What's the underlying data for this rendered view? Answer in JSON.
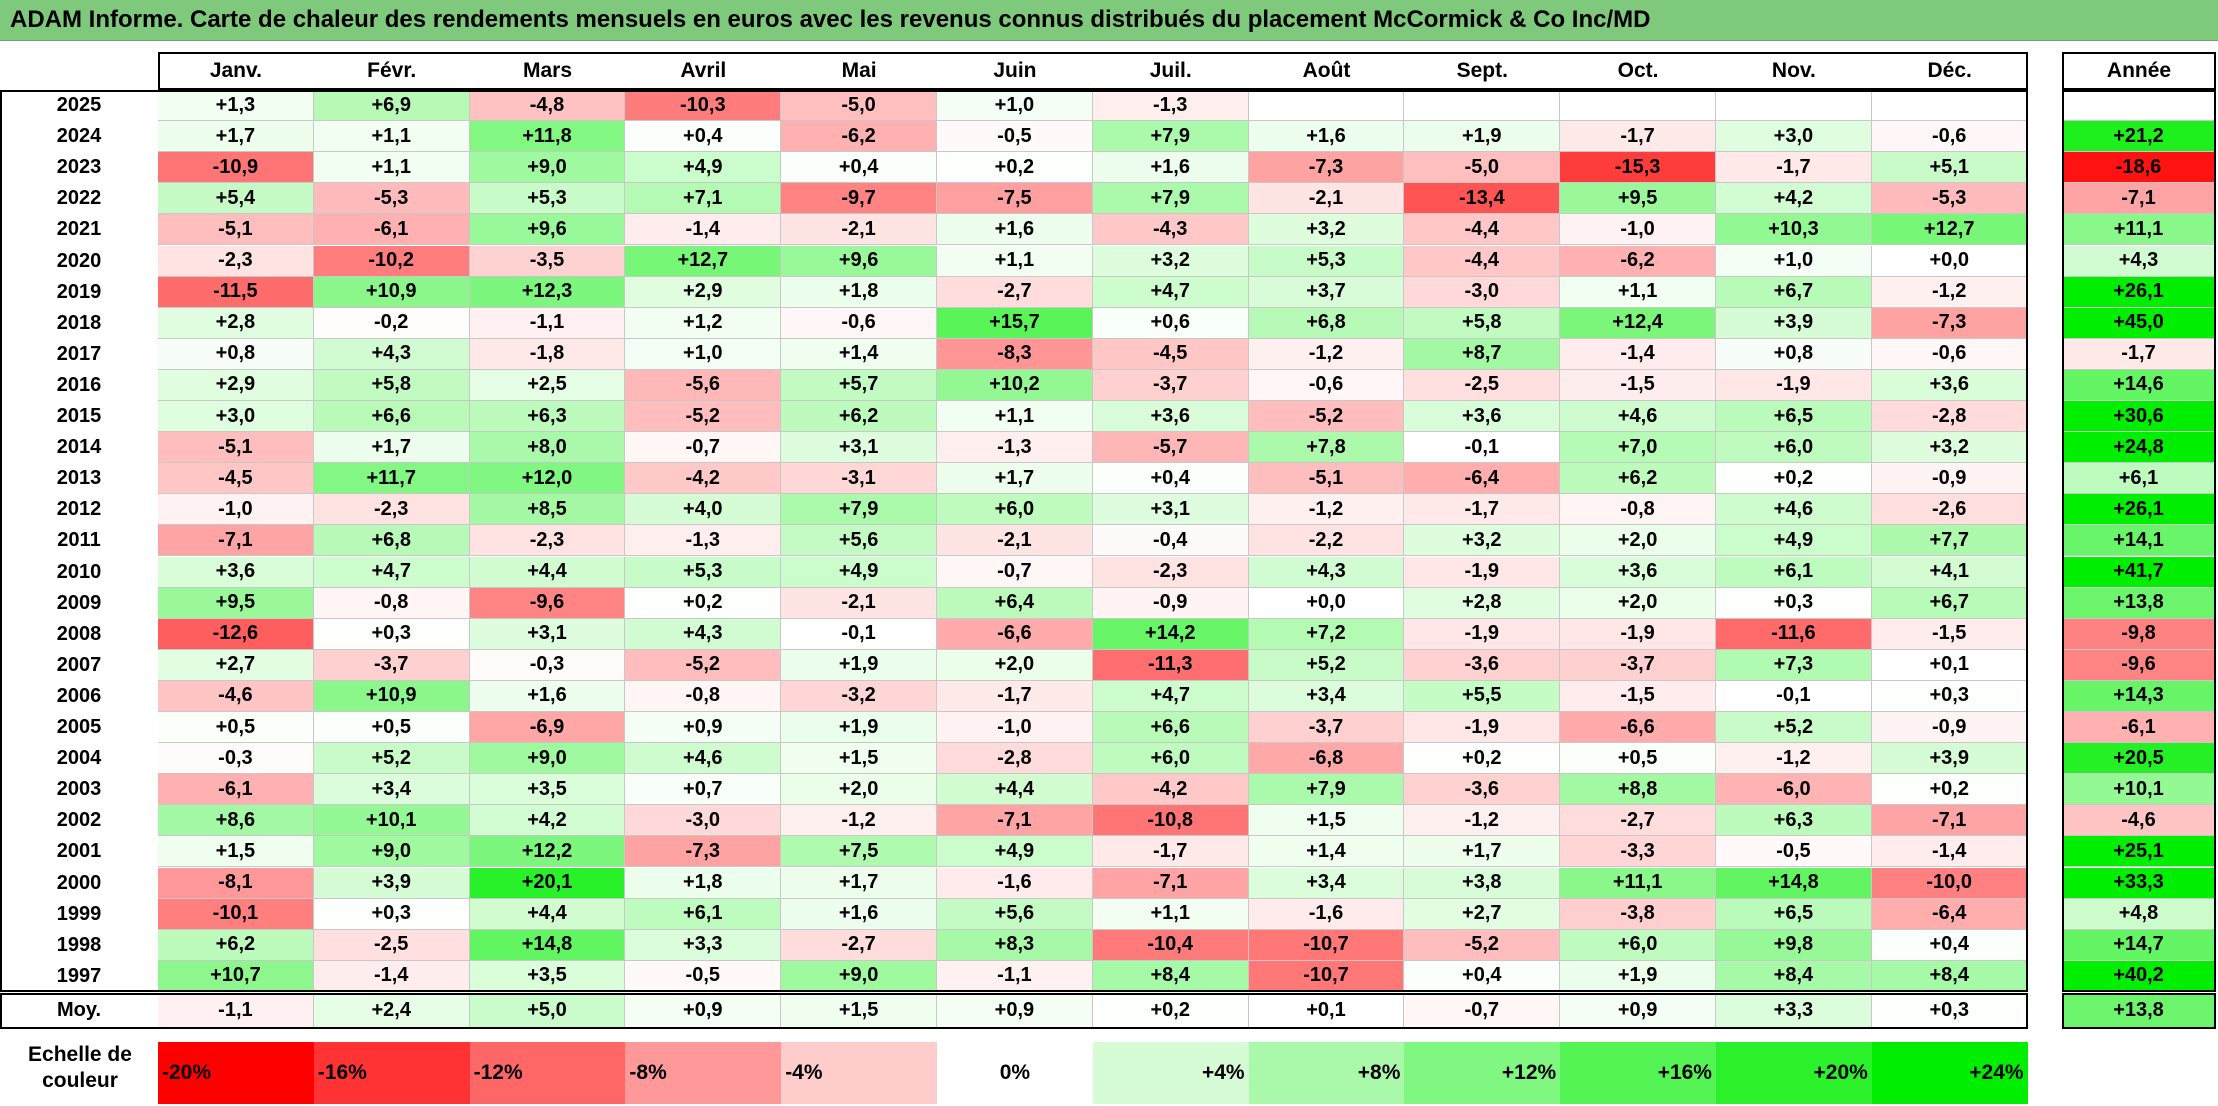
{
  "title": "ADAM Informe. Carte de chaleur des rendements mensuels en euros avec les revenus connus distribués du placement McCormick & Co Inc/MD",
  "colors": {
    "title_bg": "#7ec97b",
    "negative": "#ff0000",
    "positive": "#00ee00",
    "neutral": "#ffffff"
  },
  "chart_data": {
    "type": "heatmap",
    "title": "ADAM Informe. Carte de chaleur des rendements mensuels en euros avec les revenus connus distribués du placement McCormick & Co Inc/MD",
    "columns": [
      "Janv.",
      "Févr.",
      "Mars",
      "Avril",
      "Mai",
      "Juin",
      "Juil.",
      "Août",
      "Sept.",
      "Oct.",
      "Nov.",
      "Déc."
    ],
    "annual_header": "Année",
    "rows": [
      {
        "year": "2025",
        "values": [
          "+1,3",
          "+6,9",
          "-4,8",
          "-10,3",
          "-5,0",
          "+1,0",
          "-1,3",
          "",
          "",
          "",
          "",
          ""
        ],
        "annual": ""
      },
      {
        "year": "2024",
        "values": [
          "+1,7",
          "+1,1",
          "+11,8",
          "+0,4",
          "-6,2",
          "-0,5",
          "+7,9",
          "+1,6",
          "+1,9",
          "-1,7",
          "+3,0",
          "-0,6"
        ],
        "annual": "+21,2"
      },
      {
        "year": "2023",
        "values": [
          "-10,9",
          "+1,1",
          "+9,0",
          "+4,9",
          "+0,4",
          "+0,2",
          "+1,6",
          "-7,3",
          "-5,0",
          "-15,3",
          "-1,7",
          "+5,1"
        ],
        "annual": "-18,6"
      },
      {
        "year": "2022",
        "values": [
          "+5,4",
          "-5,3",
          "+5,3",
          "+7,1",
          "-9,7",
          "-7,5",
          "+7,9",
          "-2,1",
          "-13,4",
          "+9,5",
          "+4,2",
          "-5,3"
        ],
        "annual": "-7,1"
      },
      {
        "year": "2021",
        "values": [
          "-5,1",
          "-6,1",
          "+9,6",
          "-1,4",
          "-2,1",
          "+1,6",
          "-4,3",
          "+3,2",
          "-4,4",
          "-1,0",
          "+10,3",
          "+12,7"
        ],
        "annual": "+11,1"
      },
      {
        "year": "2020",
        "values": [
          "-2,3",
          "-10,2",
          "-3,5",
          "+12,7",
          "+9,6",
          "+1,1",
          "+3,2",
          "+5,3",
          "-4,4",
          "-6,2",
          "+1,0",
          "+0,0"
        ],
        "annual": "+4,3"
      },
      {
        "year": "2019",
        "values": [
          "-11,5",
          "+10,9",
          "+12,3",
          "+2,9",
          "+1,8",
          "-2,7",
          "+4,7",
          "+3,7",
          "-3,0",
          "+1,1",
          "+6,7",
          "-1,2"
        ],
        "annual": "+26,1"
      },
      {
        "year": "2018",
        "values": [
          "+2,8",
          "-0,2",
          "-1,1",
          "+1,2",
          "-0,6",
          "+15,7",
          "+0,6",
          "+6,8",
          "+5,8",
          "+12,4",
          "+3,9",
          "-7,3"
        ],
        "annual": "+45,0"
      },
      {
        "year": "2017",
        "values": [
          "+0,8",
          "+4,3",
          "-1,8",
          "+1,0",
          "+1,4",
          "-8,3",
          "-4,5",
          "-1,2",
          "+8,7",
          "-1,4",
          "+0,8",
          "-0,6"
        ],
        "annual": "-1,7"
      },
      {
        "year": "2016",
        "values": [
          "+2,9",
          "+5,8",
          "+2,5",
          "-5,6",
          "+5,7",
          "+10,2",
          "-3,7",
          "-0,6",
          "-2,5",
          "-1,5",
          "-1,9",
          "+3,6"
        ],
        "annual": "+14,6"
      },
      {
        "year": "2015",
        "values": [
          "+3,0",
          "+6,6",
          "+6,3",
          "-5,2",
          "+6,2",
          "+1,1",
          "+3,6",
          "-5,2",
          "+3,6",
          "+4,6",
          "+6,5",
          "-2,8"
        ],
        "annual": "+30,6"
      },
      {
        "year": "2014",
        "values": [
          "-5,1",
          "+1,7",
          "+8,0",
          "-0,7",
          "+3,1",
          "-1,3",
          "-5,7",
          "+7,8",
          "-0,1",
          "+7,0",
          "+6,0",
          "+3,2"
        ],
        "annual": "+24,8"
      },
      {
        "year": "2013",
        "values": [
          "-4,5",
          "+11,7",
          "+12,0",
          "-4,2",
          "-3,1",
          "+1,7",
          "+0,4",
          "-5,1",
          "-6,4",
          "+6,2",
          "+0,2",
          "-0,9"
        ],
        "annual": "+6,1"
      },
      {
        "year": "2012",
        "values": [
          "-1,0",
          "-2,3",
          "+8,5",
          "+4,0",
          "+7,9",
          "+6,0",
          "+3,1",
          "-1,2",
          "-1,7",
          "-0,8",
          "+4,6",
          "-2,6"
        ],
        "annual": "+26,1"
      },
      {
        "year": "2011",
        "values": [
          "-7,1",
          "+6,8",
          "-2,3",
          "-1,3",
          "+5,6",
          "-2,1",
          "-0,4",
          "-2,2",
          "+3,2",
          "+2,0",
          "+4,9",
          "+7,7"
        ],
        "annual": "+14,1"
      },
      {
        "year": "2010",
        "values": [
          "+3,6",
          "+4,7",
          "+4,4",
          "+5,3",
          "+4,9",
          "-0,7",
          "-2,3",
          "+4,3",
          "-1,9",
          "+3,6",
          "+6,1",
          "+4,1"
        ],
        "annual": "+41,7"
      },
      {
        "year": "2009",
        "values": [
          "+9,5",
          "-0,8",
          "-9,6",
          "+0,2",
          "-2,1",
          "+6,4",
          "-0,9",
          "+0,0",
          "+2,8",
          "+2,0",
          "+0,3",
          "+6,7"
        ],
        "annual": "+13,8"
      },
      {
        "year": "2008",
        "values": [
          "-12,6",
          "+0,3",
          "+3,1",
          "+4,3",
          "-0,1",
          "-6,6",
          "+14,2",
          "+7,2",
          "-1,9",
          "-1,9",
          "-11,6",
          "-1,5"
        ],
        "annual": "-9,8"
      },
      {
        "year": "2007",
        "values": [
          "+2,7",
          "-3,7",
          "-0,3",
          "-5,2",
          "+1,9",
          "+2,0",
          "-11,3",
          "+5,2",
          "-3,6",
          "-3,7",
          "+7,3",
          "+0,1"
        ],
        "annual": "-9,6"
      },
      {
        "year": "2006",
        "values": [
          "-4,6",
          "+10,9",
          "+1,6",
          "-0,8",
          "-3,2",
          "-1,7",
          "+4,7",
          "+3,4",
          "+5,5",
          "-1,5",
          "-0,1",
          "+0,3"
        ],
        "annual": "+14,3"
      },
      {
        "year": "2005",
        "values": [
          "+0,5",
          "+0,5",
          "-6,9",
          "+0,9",
          "+1,9",
          "-1,0",
          "+6,6",
          "-3,7",
          "-1,9",
          "-6,6",
          "+5,2",
          "-0,9"
        ],
        "annual": "-6,1"
      },
      {
        "year": "2004",
        "values": [
          "-0,3",
          "+5,2",
          "+9,0",
          "+4,6",
          "+1,5",
          "-2,8",
          "+6,0",
          "-6,8",
          "+0,2",
          "+0,5",
          "-1,2",
          "+3,9"
        ],
        "annual": "+20,5"
      },
      {
        "year": "2003",
        "values": [
          "-6,1",
          "+3,4",
          "+3,5",
          "+0,7",
          "+2,0",
          "+4,4",
          "-4,2",
          "+7,9",
          "-3,6",
          "+8,8",
          "-6,0",
          "+0,2"
        ],
        "annual": "+10,1"
      },
      {
        "year": "2002",
        "values": [
          "+8,6",
          "+10,1",
          "+4,2",
          "-3,0",
          "-1,2",
          "-7,1",
          "-10,8",
          "+1,5",
          "-1,2",
          "-2,7",
          "+6,3",
          "-7,1"
        ],
        "annual": "-4,6"
      },
      {
        "year": "2001",
        "values": [
          "+1,5",
          "+9,0",
          "+12,2",
          "-7,3",
          "+7,5",
          "+4,9",
          "-1,7",
          "+1,4",
          "+1,7",
          "-3,3",
          "-0,5",
          "-1,4"
        ],
        "annual": "+25,1"
      },
      {
        "year": "2000",
        "values": [
          "-8,1",
          "+3,9",
          "+20,1",
          "+1,8",
          "+1,7",
          "-1,6",
          "-7,1",
          "+3,4",
          "+3,8",
          "+11,1",
          "+14,8",
          "-10,0"
        ],
        "annual": "+33,3"
      },
      {
        "year": "1999",
        "values": [
          "-10,1",
          "+0,3",
          "+4,4",
          "+6,1",
          "+1,6",
          "+5,6",
          "+1,1",
          "-1,6",
          "+2,7",
          "-3,8",
          "+6,5",
          "-6,4"
        ],
        "annual": "+4,8"
      },
      {
        "year": "1998",
        "values": [
          "+6,2",
          "-2,5",
          "+14,8",
          "+3,3",
          "-2,7",
          "+8,3",
          "-10,4",
          "-10,7",
          "-5,2",
          "+6,0",
          "+9,8",
          "+0,4"
        ],
        "annual": "+14,7"
      },
      {
        "year": "1997",
        "values": [
          "+10,7",
          "-1,4",
          "+3,5",
          "-0,5",
          "+9,0",
          "-1,1",
          "+8,4",
          "-10,7",
          "+0,4",
          "+1,9",
          "+8,4",
          "+8,4"
        ],
        "annual": "+40,2"
      }
    ],
    "average": {
      "label": "Moy.",
      "values": [
        "-1,1",
        "+2,4",
        "+5,0",
        "+0,9",
        "+1,5",
        "+0,9",
        "+0,2",
        "+0,1",
        "-0,7",
        "+0,9",
        "+3,3",
        "+0,3"
      ],
      "annual": "+13,8"
    },
    "scale": {
      "label_line1": "Echelle de",
      "label_line2": "couleur",
      "steps": [
        "-20%",
        "-16%",
        "-12%",
        "-8%",
        "-4%",
        "0%",
        "+4%",
        "+8%",
        "+12%",
        "+16%",
        "+20%",
        "+24%"
      ]
    }
  }
}
